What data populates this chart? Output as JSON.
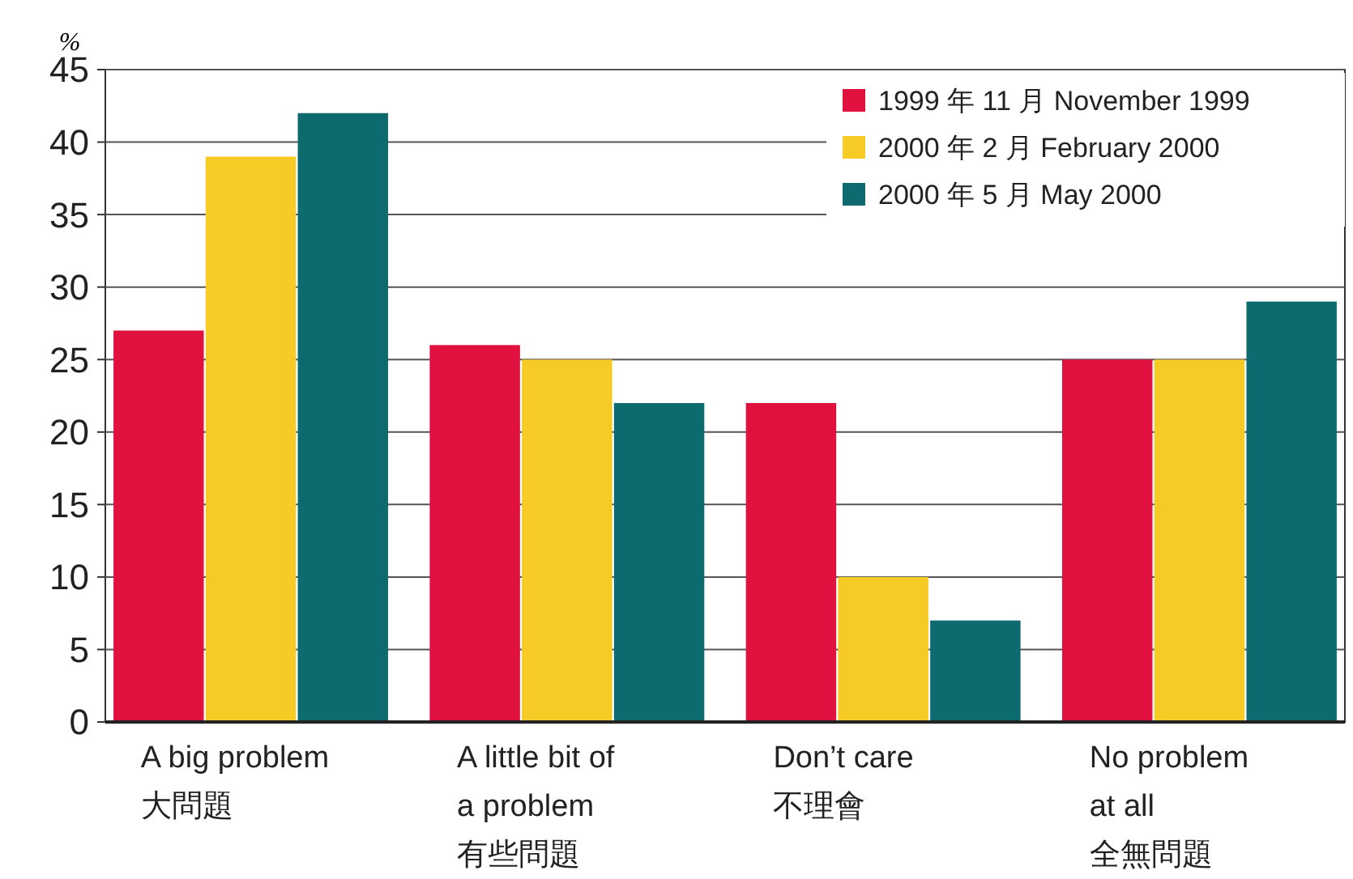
{
  "chart_data": {
    "type": "bar",
    "ylabel": "%",
    "categories": [
      "A big problem\n大問題",
      "A little bit of\na problem\n有些問題",
      "Don’t care\n不理會",
      "No problem\nat all\n全無問題"
    ],
    "series": [
      {
        "name": "1999 年 11 月  November 1999",
        "color": "#e0103f",
        "values": [
          27,
          26,
          22,
          25
        ]
      },
      {
        "name": "2000 年 2 月  February 2000",
        "color": "#f7cb25",
        "values": [
          39,
          25,
          10,
          25
        ]
      },
      {
        "name": "2000 年 5 月  May 2000",
        "color": "#0d6b70",
        "values": [
          42,
          22,
          7,
          29
        ]
      }
    ],
    "ylim": [
      0,
      45
    ],
    "yticks": [
      0,
      5,
      10,
      15,
      20,
      25,
      30,
      35,
      40,
      45
    ],
    "grid": "y",
    "legend": "top right"
  }
}
